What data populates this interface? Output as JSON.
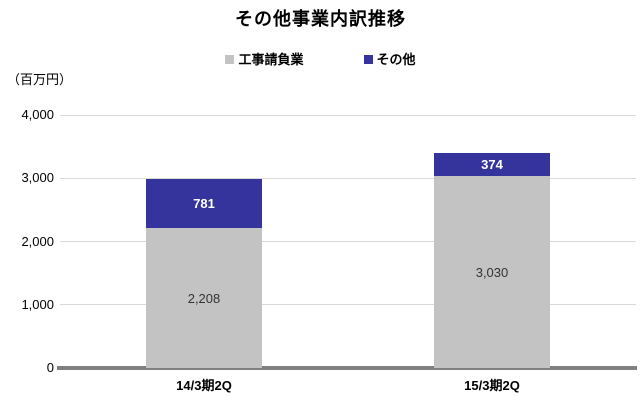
{
  "chart": {
    "title": "その他事業内訳推移",
    "unit_label": "（百万円）"
  },
  "chart_data": {
    "type": "bar",
    "stacked": true,
    "title": "その他事業内訳推移",
    "ylabel": "（百万円）",
    "categories": [
      "14/3期2Q",
      "15/3期2Q"
    ],
    "series": [
      {
        "name": "工事請負業",
        "color": "#c3c3c3",
        "values": [
          2208,
          3030
        ],
        "label_color": "#333333"
      },
      {
        "name": "その他",
        "color": "#34349c",
        "values": [
          781,
          374
        ],
        "label_color": "#ffffff"
      }
    ],
    "ylim": [
      0,
      4000
    ],
    "yticks": [
      0,
      1000,
      2000,
      3000,
      4000
    ],
    "grid": true,
    "legend_position": "top",
    "axis_line_color": "#808080",
    "gridline_color": "#d9d9d9"
  }
}
